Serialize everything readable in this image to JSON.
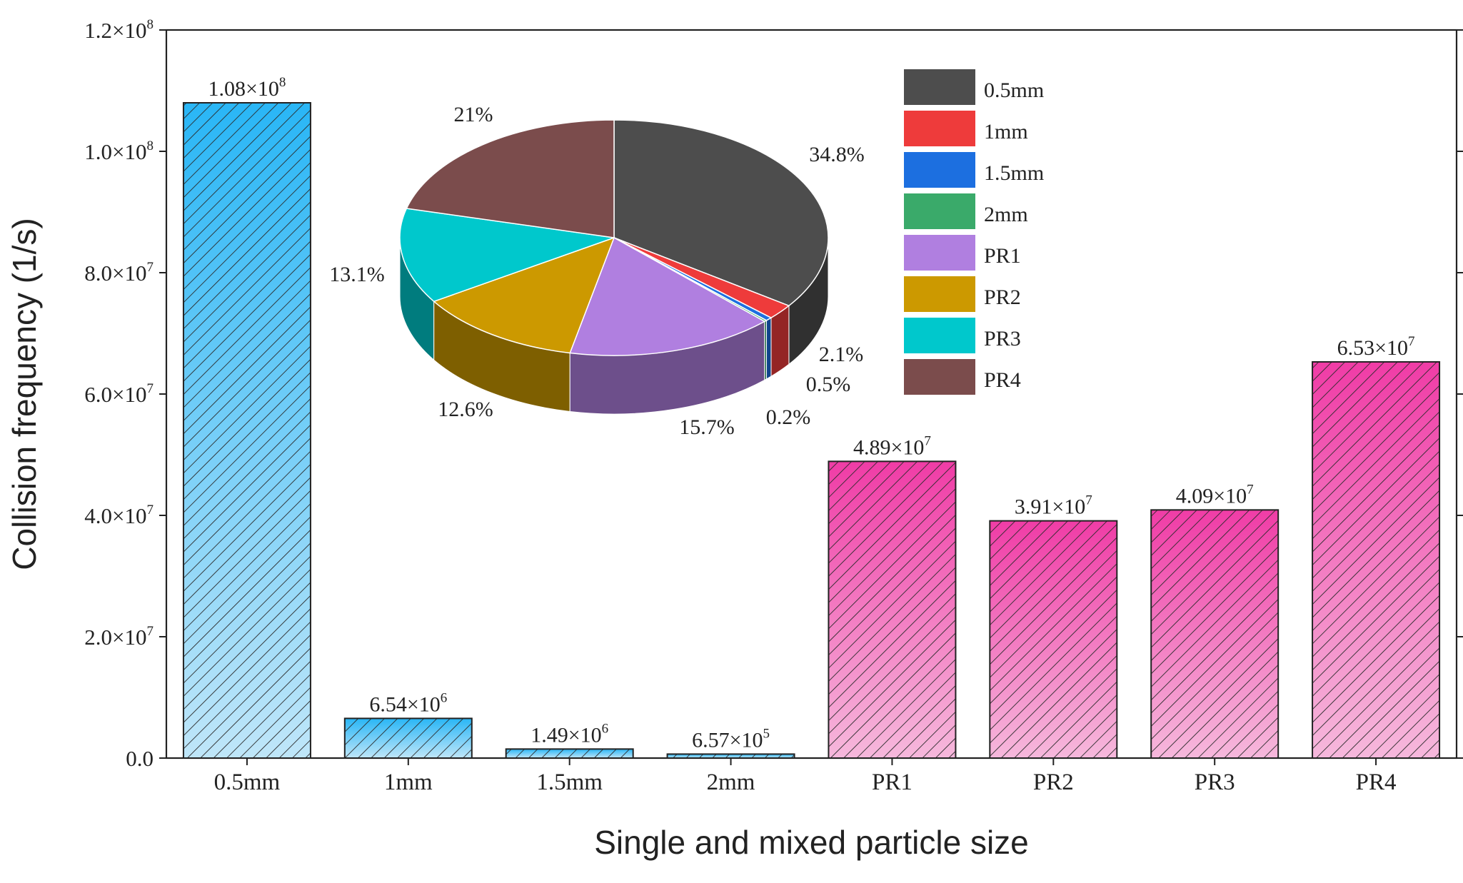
{
  "chart_data": [
    {
      "type": "bar",
      "xlabel": "Single and mixed particle size",
      "ylabel": "Collision frequency (1/s)",
      "ylim": [
        0,
        120000000
      ],
      "yticks": [
        0,
        20000000,
        40000000,
        60000000,
        80000000,
        100000000,
        120000000
      ],
      "ytick_labels": [
        {
          "m": "0.0",
          "e": ""
        },
        {
          "m": "2.0×10",
          "e": "7"
        },
        {
          "m": "4.0×10",
          "e": "7"
        },
        {
          "m": "6.0×10",
          "e": "7"
        },
        {
          "m": "8.0×10",
          "e": "7"
        },
        {
          "m": "1.0×10",
          "e": "8"
        },
        {
          "m": "1.2×10",
          "e": "8"
        }
      ],
      "categories": [
        "0.5mm",
        "1mm",
        "1.5mm",
        "2mm",
        "PR1",
        "PR2",
        "PR3",
        "PR4"
      ],
      "values": [
        108000000,
        6540000,
        1490000,
        657000,
        48900000,
        39100000,
        40900000,
        65300000
      ],
      "value_labels": [
        {
          "m": "1.08×10",
          "e": "8"
        },
        {
          "m": "6.54×10",
          "e": "6"
        },
        {
          "m": "1.49×10",
          "e": "6"
        },
        {
          "m": "6.57×10",
          "e": "5"
        },
        {
          "m": "4.89×10",
          "e": "7"
        },
        {
          "m": "3.91×10",
          "e": "7"
        },
        {
          "m": "4.09×10",
          "e": "7"
        },
        {
          "m": "6.53×10",
          "e": "7"
        }
      ],
      "groups": [
        {
          "indices": [
            0,
            1,
            2,
            3
          ],
          "color": "#29b6f6"
        },
        {
          "indices": [
            4,
            5,
            6,
            7
          ],
          "color": "#f03ca6"
        }
      ],
      "hatch": "diagonal"
    },
    {
      "type": "pie",
      "style": "3d",
      "labels": [
        "0.5mm",
        "1mm",
        "1.5mm",
        "2mm",
        "PR1",
        "PR2",
        "PR3",
        "PR4"
      ],
      "values": [
        34.8,
        2.1,
        0.5,
        0.2,
        15.7,
        12.6,
        13.1,
        21.0
      ],
      "value_labels": [
        "34.8%",
        "2.1%",
        "0.5%",
        "0.2%",
        "15.7%",
        "12.6%",
        "13.1%",
        "21%"
      ],
      "colors": [
        "#4d4d4d",
        "#ee3b3b",
        "#1c6fe0",
        "#3aaa6a",
        "#b07fe0",
        "#cc9900",
        "#00c8cc",
        "#7b4c4c"
      ],
      "legend_position": "right"
    }
  ]
}
